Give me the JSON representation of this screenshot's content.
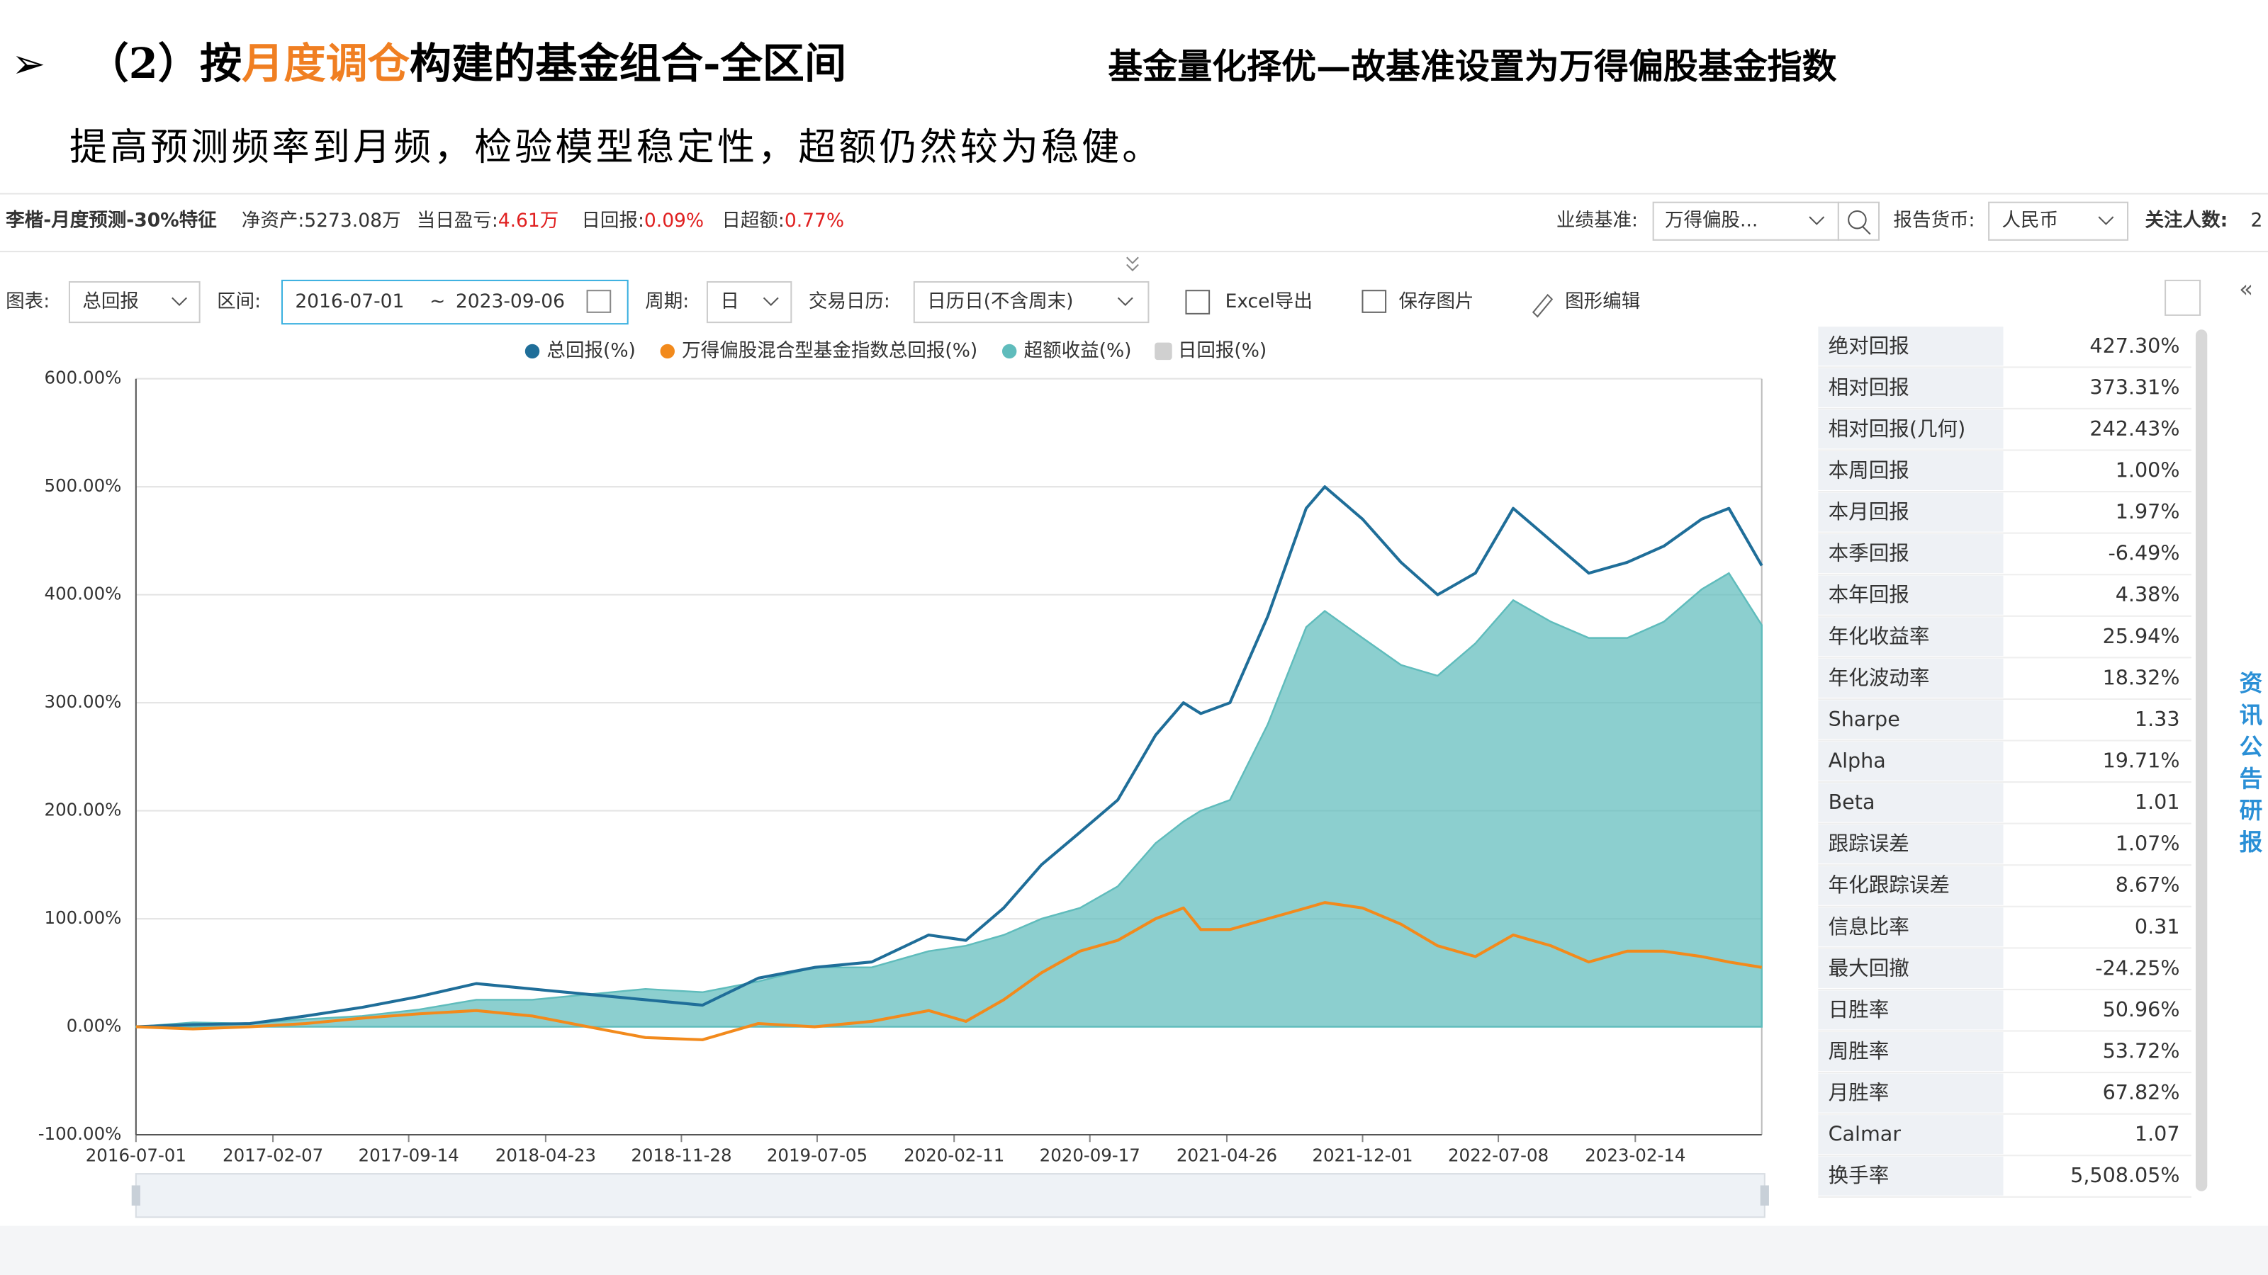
{
  "header": {
    "title_prefix": "（2）按",
    "title_highlight": "月度调仓",
    "title_suffix": "构建的基金组合-全区间",
    "note": "基金量化择优—故基准设置为万得偏股基金指数",
    "subtitle": "提高预测频率到月频，检验模型稳定性，超额仍然较为稳健。"
  },
  "info_bar": {
    "name": "李楷-月度预测-30%特征",
    "nav_label": "净资产:",
    "nav": "5273.08万",
    "pnl_label": "当日盈亏:",
    "pnl": "4.61万",
    "daily_label": "日回报:",
    "daily": "0.09%",
    "excess_label": "日超额:",
    "excess": "0.77%",
    "benchmark_label": "业绩基准:",
    "benchmark": "万得偏股...",
    "currency_label": "报告货币:",
    "currency": "人民币",
    "followers_label": "关注人数:",
    "followers": "2"
  },
  "toolbar": {
    "chart_label": "图表:",
    "chart": "总回报",
    "range_label": "区间:",
    "start": "2016-07-01",
    "sep": "~",
    "end": "2023-09-06",
    "period_label": "周期:",
    "period": "日",
    "calendar_label": "交易日历:",
    "calendar": "日历日(不含周末)",
    "export": "Excel导出",
    "save": "保存图片",
    "edit": "图形编辑"
  },
  "side_tab": "资讯公告研报",
  "chart_data": {
    "type": "line",
    "x": [
      "2016-07-01",
      "2016-10-01",
      "2017-01-01",
      "2017-04-01",
      "2017-07-01",
      "2017-10-01",
      "2018-01-01",
      "2018-04-01",
      "2018-07-01",
      "2018-10-01",
      "2019-01-01",
      "2019-04-01",
      "2019-07-01",
      "2019-10-01",
      "2020-01-01",
      "2020-03-01",
      "2020-05-01",
      "2020-07-01",
      "2020-09-01",
      "2020-11-01",
      "2021-01-01",
      "2021-02-15",
      "2021-03-15",
      "2021-05-01",
      "2021-07-01",
      "2021-09-01",
      "2021-10-01",
      "2021-12-01",
      "2022-02-01",
      "2022-04-01",
      "2022-06-01",
      "2022-08-01",
      "2022-10-01",
      "2022-12-01",
      "2023-02-01",
      "2023-04-01",
      "2023-06-01",
      "2023-07-15",
      "2023-09-06"
    ],
    "xlim": [
      "2016-07-01",
      "2023-09-06"
    ],
    "xticks": [
      "2016-07-01",
      "2017-02-07",
      "2017-09-14",
      "2018-04-23",
      "2018-11-28",
      "2019-07-05",
      "2020-02-11",
      "2020-09-17",
      "2021-04-26",
      "2021-12-01",
      "2022-07-08",
      "2023-02-14"
    ],
    "ylim": [
      -100,
      600
    ],
    "yticks": [
      {
        "value": -100,
        "label": "-100.00%"
      },
      {
        "value": 0,
        "label": "0.00%"
      },
      {
        "value": 100,
        "label": "100.00%"
      },
      {
        "value": 200,
        "label": "200.00%"
      },
      {
        "value": 300,
        "label": "300.00%"
      },
      {
        "value": 400,
        "label": "400.00%"
      },
      {
        "value": 500,
        "label": "500.00%"
      },
      {
        "value": 600,
        "label": "600.00%"
      }
    ],
    "grid": true,
    "series": [
      {
        "name": "总回报(%)",
        "color": "#1f6e99",
        "style": "line",
        "values": [
          0,
          2,
          3,
          10,
          18,
          28,
          40,
          35,
          30,
          25,
          20,
          45,
          55,
          60,
          85,
          80,
          110,
          150,
          180,
          210,
          270,
          300,
          290,
          300,
          380,
          480,
          500,
          470,
          430,
          400,
          420,
          480,
          450,
          420,
          430,
          445,
          470,
          480,
          427
        ]
      },
      {
        "name": "万得偏股混合型基金指数总回报(%)",
        "color": "#f28a1c",
        "style": "line",
        "values": [
          0,
          -2,
          0,
          3,
          8,
          12,
          15,
          10,
          0,
          -10,
          -12,
          3,
          0,
          5,
          15,
          5,
          25,
          50,
          70,
          80,
          100,
          110,
          90,
          90,
          100,
          110,
          115,
          110,
          95,
          75,
          65,
          85,
          75,
          60,
          70,
          70,
          65,
          60,
          55
        ]
      },
      {
        "name": "超额收益(%)",
        "color": "#5fbcbc",
        "style": "area",
        "values": [
          0,
          4,
          3,
          7,
          10,
          16,
          25,
          25,
          30,
          35,
          32,
          42,
          55,
          55,
          70,
          75,
          85,
          100,
          110,
          130,
          170,
          190,
          200,
          210,
          280,
          370,
          385,
          360,
          335,
          325,
          355,
          395,
          375,
          360,
          360,
          375,
          405,
          420,
          372
        ]
      }
    ],
    "hidden_legend": [
      {
        "name": "日回报(%)",
        "color": "#d0d0d0"
      }
    ]
  },
  "stats": [
    [
      "绝对回报",
      "427.30%"
    ],
    [
      "相对回报",
      "373.31%"
    ],
    [
      "相对回报(几何)",
      "242.43%"
    ],
    [
      "本周回报",
      "1.00%"
    ],
    [
      "本月回报",
      "1.97%"
    ],
    [
      "本季回报",
      "-6.49%"
    ],
    [
      "本年回报",
      "4.38%"
    ],
    [
      "年化收益率",
      "25.94%"
    ],
    [
      "年化波动率",
      "18.32%"
    ],
    [
      "Sharpe",
      "1.33"
    ],
    [
      "Alpha",
      "19.71%"
    ],
    [
      "Beta",
      "1.01"
    ],
    [
      "跟踪误差",
      "1.07%"
    ],
    [
      "年化跟踪误差",
      "8.67%"
    ],
    [
      "信息比率",
      "0.31"
    ],
    [
      "最大回撤",
      "-24.25%"
    ],
    [
      "日胜率",
      "50.96%"
    ],
    [
      "周胜率",
      "53.72%"
    ],
    [
      "月胜率",
      "67.82%"
    ],
    [
      "Calmar",
      "1.07"
    ],
    [
      "换手率",
      "5,508.05%"
    ]
  ]
}
